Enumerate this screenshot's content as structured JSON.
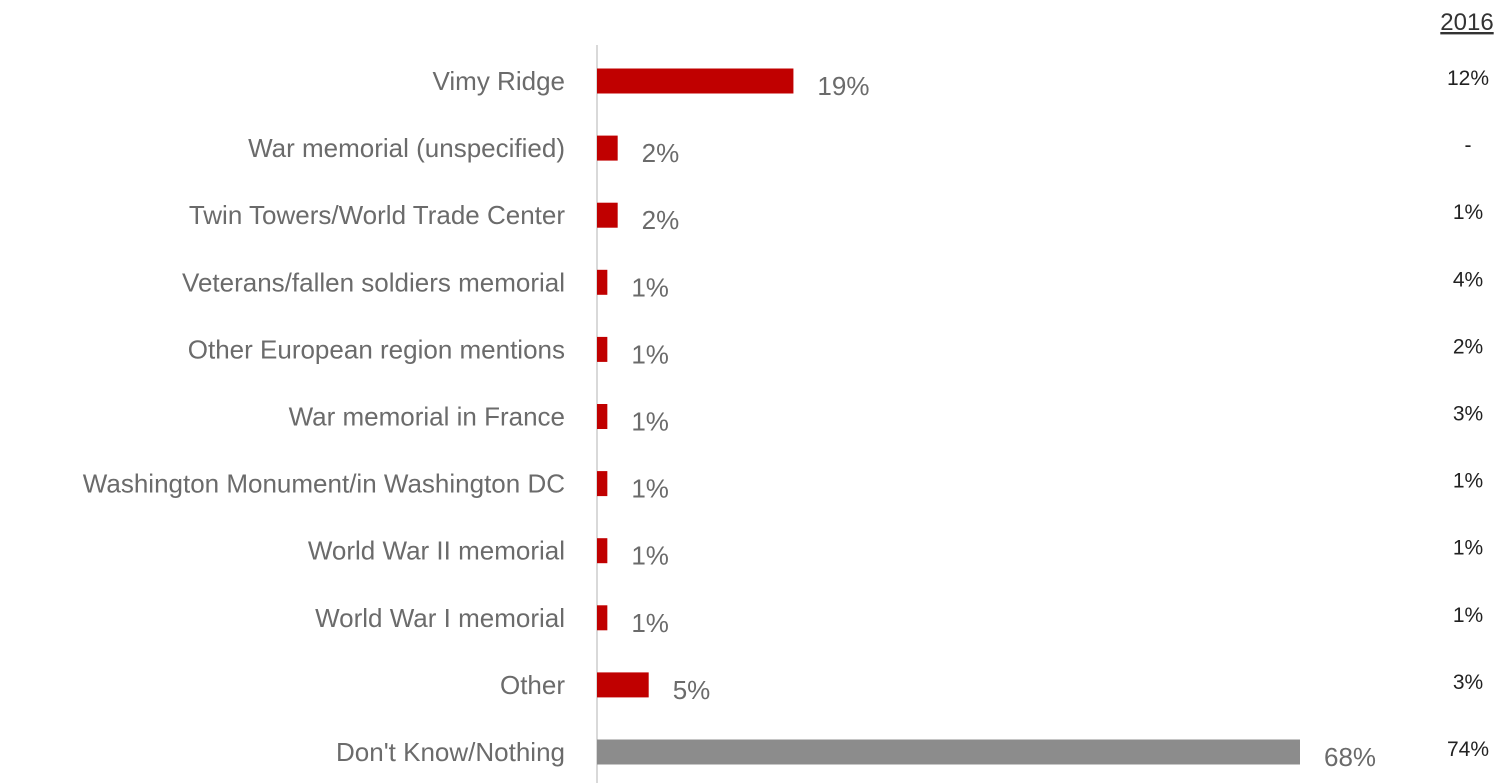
{
  "chart_data": {
    "type": "bar",
    "orientation": "horizontal",
    "categories": [
      "Vimy Ridge",
      "War memorial (unspecified)",
      "Twin Towers/World Trade Center",
      "Veterans/fallen soldiers memorial",
      "Other European region mentions",
      "War memorial in France",
      "Washington Monument/in Washington DC",
      "World War II memorial",
      "World War I memorial",
      "Other",
      "Don't Know/Nothing"
    ],
    "values": [
      19,
      2,
      2,
      1,
      1,
      1,
      1,
      1,
      1,
      5,
      68
    ],
    "value_labels": [
      "19%",
      "2%",
      "2%",
      "1%",
      "1%",
      "1%",
      "1%",
      "1%",
      "1%",
      "5%",
      "68%"
    ],
    "comparison": {
      "header": "2016",
      "labels": [
        "12%",
        "-",
        "1%",
        "4%",
        "2%",
        "3%",
        "1%",
        "1%",
        "1%",
        "3%",
        "74%"
      ]
    },
    "xlim": [
      0,
      68
    ],
    "grid": false,
    "legend": "none",
    "colors": {
      "bar": "#c00000",
      "bar_highlight": "#8c8c8c",
      "axis": "#d9d9d9",
      "label": "#6b6b6b"
    }
  }
}
